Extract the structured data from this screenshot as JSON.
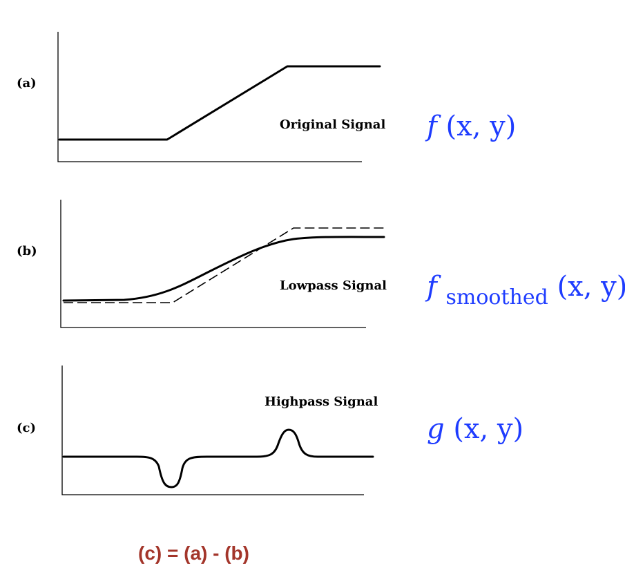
{
  "panels": [
    {
      "label": "(a)",
      "signal_label": "Original Signal",
      "math": {
        "base": "f",
        "sub": "",
        "args": "(x, y)"
      }
    },
    {
      "label": "(b)",
      "signal_label": "Lowpass Signal",
      "math": {
        "base": "f",
        "sub": "smoothed",
        "args": "(x, y)"
      }
    },
    {
      "label": "(c)",
      "signal_label": "Highpass Signal",
      "math": {
        "base": "g",
        "sub": "",
        "args": "(x, y)"
      }
    }
  ],
  "caption": "(c) = (a) - (b)",
  "colors": {
    "math": "#1e3cff",
    "caption": "#a3352a",
    "line": "#000000"
  }
}
